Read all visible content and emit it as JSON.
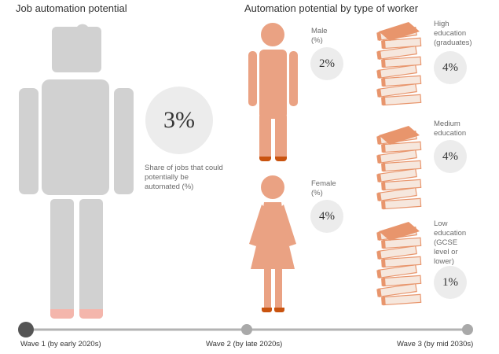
{
  "chart_data": {
    "type": "infographic",
    "left_panel": {
      "title": "Job automation potential",
      "value_label": "3%",
      "value": 3,
      "note": "Share of jobs that could potentially be automated (%)"
    },
    "right_panel": {
      "title": "Automation potential by type of worker",
      "groups": [
        {
          "label": "Male\n(%)",
          "value_label": "2%",
          "value": 2,
          "icon": "male-figure-icon"
        },
        {
          "label": "Female\n(%)",
          "value_label": "4%",
          "value": 4,
          "icon": "female-figure-icon"
        },
        {
          "label": "High\neducation\n(graduates)",
          "value_label": "4%",
          "value": 4,
          "icon": "book-stack-icon"
        },
        {
          "label": "Medium\neducation",
          "value_label": "4%",
          "value": 4,
          "icon": "book-stack-icon"
        },
        {
          "label": "Low\neducation\n(GCSE\nlevel or\nlower)",
          "value_label": "1%",
          "value": 1,
          "icon": "book-stack-icon"
        }
      ]
    },
    "timeline": {
      "waves": [
        "Wave 1 (by early 2020s)",
        "Wave 2 (by late 2020s)",
        "Wave 3 (by mid 2030s)"
      ],
      "selected": 0
    }
  },
  "colors": {
    "grey_figure": "#d1d1d1",
    "figure_orange": "#eaa283",
    "feet_orange": "#c9530f",
    "feet_pink": "#f4b6ac",
    "book_orange": "#e8956c",
    "book_page": "#f6e7dd",
    "bubble": "#ececec",
    "timeline_line": "#b3b3b3",
    "timeline_dot": "#a9a9a9",
    "timeline_active": "#555555"
  }
}
